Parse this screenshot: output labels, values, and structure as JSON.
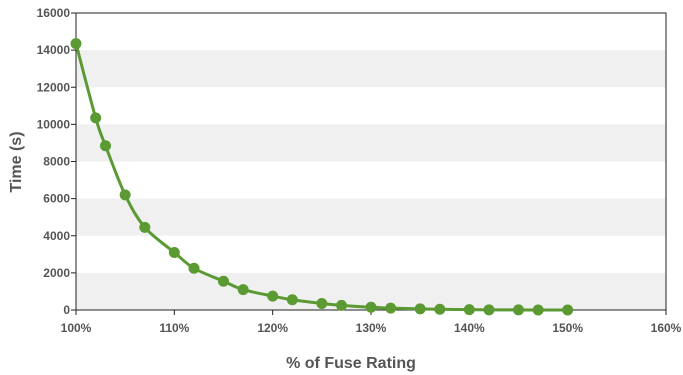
{
  "chart_data": {
    "type": "line",
    "title": "",
    "xlabel": "% of Fuse Rating",
    "ylabel": "Time (s)",
    "xlim": [
      100,
      160
    ],
    "ylim": [
      0,
      16000
    ],
    "x_ticks": [
      100,
      110,
      120,
      130,
      140,
      150,
      160
    ],
    "x_tick_labels": [
      "100%",
      "110%",
      "120%",
      "130%",
      "140%",
      "150%",
      "160%"
    ],
    "y_ticks": [
      0,
      2000,
      4000,
      6000,
      8000,
      10000,
      12000,
      14000,
      16000
    ],
    "y_tick_labels": [
      "0",
      "2000",
      "4000",
      "6000",
      "8000",
      "10000",
      "12000",
      "14000",
      "16000"
    ],
    "grid": "alternating horizontal bands",
    "legend": "none",
    "series": [
      {
        "color": "#5b9a32",
        "points": [
          {
            "x": 100,
            "y": 14350
          },
          {
            "x": 102,
            "y": 10350
          },
          {
            "x": 103,
            "y": 8850
          },
          {
            "x": 105,
            "y": 6200
          },
          {
            "x": 107,
            "y": 4450
          },
          {
            "x": 110,
            "y": 3100
          },
          {
            "x": 112,
            "y": 2250
          },
          {
            "x": 115,
            "y": 1550
          },
          {
            "x": 117,
            "y": 1100
          },
          {
            "x": 120,
            "y": 750
          },
          {
            "x": 122,
            "y": 550
          },
          {
            "x": 125,
            "y": 350
          },
          {
            "x": 127,
            "y": 250
          },
          {
            "x": 130,
            "y": 150
          },
          {
            "x": 132,
            "y": 100
          },
          {
            "x": 135,
            "y": 60
          },
          {
            "x": 137,
            "y": 40
          },
          {
            "x": 140,
            "y": 20
          },
          {
            "x": 142,
            "y": 10
          },
          {
            "x": 145,
            "y": 5
          },
          {
            "x": 147,
            "y": 2
          },
          {
            "x": 150,
            "y": 0
          }
        ]
      }
    ]
  }
}
